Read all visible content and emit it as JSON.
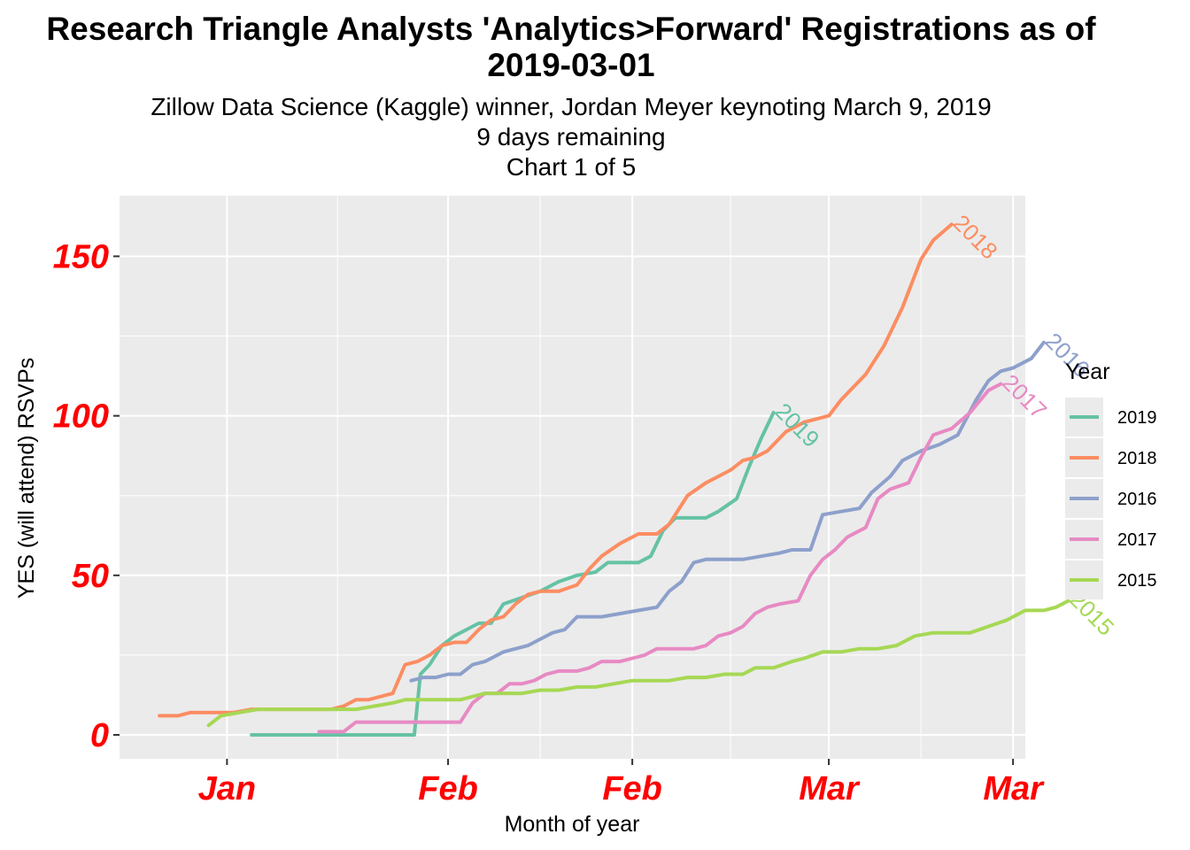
{
  "chart_data": {
    "type": "line",
    "title_line1": "Research Triangle Analysts 'Analytics>Forward' Registrations as of",
    "title_line2": "2019-03-01",
    "subtitle_lines": [
      "Zillow Data Science (Kaggle) winner, Jordan Meyer keynoting March 9, 2019",
      "9 days remaining",
      "Chart 1 of 5"
    ],
    "xlabel": "Month of year",
    "ylabel": "YES (will attend) RSVPs",
    "x_ticks": [
      {
        "x": 0,
        "label": "Jan"
      },
      {
        "x": 36,
        "label": "Feb"
      },
      {
        "x": 66,
        "label": "Feb"
      },
      {
        "x": 98,
        "label": "Mar"
      },
      {
        "x": 128,
        "label": "Mar"
      }
    ],
    "x_range": [
      -17.5,
      130
    ],
    "y_ticks": [
      0,
      50,
      100,
      150
    ],
    "ylim": [
      -7.5,
      169
    ],
    "grid": true,
    "legend": {
      "title": "Year",
      "position": "right"
    },
    "colors": {
      "2019": "#66c2a5",
      "2018": "#fc8d62",
      "2016": "#8da0cb",
      "2017": "#e78ac3",
      "2015": "#a6d854",
      "panel": "#ebebeb",
      "grid": "#ffffff",
      "tick_text": "#ff0000"
    },
    "series": [
      {
        "name": "2019",
        "label_at_end": true,
        "points": [
          [
            4,
            0
          ],
          [
            8,
            0
          ],
          [
            12,
            0
          ],
          [
            16,
            0
          ],
          [
            20,
            0
          ],
          [
            24,
            0
          ],
          [
            28,
            0
          ],
          [
            30.5,
            0
          ],
          [
            31.5,
            19
          ],
          [
            33,
            22
          ],
          [
            35,
            28
          ],
          [
            37,
            31
          ],
          [
            39,
            33
          ],
          [
            41,
            35
          ],
          [
            43,
            35
          ],
          [
            45,
            41
          ],
          [
            48,
            43
          ],
          [
            51,
            45
          ],
          [
            54,
            48
          ],
          [
            57,
            50
          ],
          [
            60,
            51
          ],
          [
            62,
            54
          ],
          [
            64,
            54
          ],
          [
            67,
            54
          ],
          [
            69,
            56
          ],
          [
            71,
            64
          ],
          [
            73,
            68
          ],
          [
            76,
            68
          ],
          [
            78,
            68
          ],
          [
            80,
            70
          ],
          [
            83,
            74
          ],
          [
            85,
            84
          ],
          [
            87,
            93
          ],
          [
            89,
            101
          ]
        ]
      },
      {
        "name": "2018",
        "label_at_end": true,
        "points": [
          [
            -11,
            6
          ],
          [
            -8,
            6
          ],
          [
            -6,
            7
          ],
          [
            -3,
            7
          ],
          [
            0,
            7
          ],
          [
            1,
            7
          ],
          [
            4,
            8
          ],
          [
            8,
            8
          ],
          [
            12,
            8
          ],
          [
            17,
            8
          ],
          [
            19,
            9
          ],
          [
            21,
            11
          ],
          [
            23,
            11
          ],
          [
            25,
            12
          ],
          [
            27,
            13
          ],
          [
            29,
            22
          ],
          [
            31,
            23
          ],
          [
            33,
            25
          ],
          [
            35,
            28
          ],
          [
            37,
            29
          ],
          [
            39,
            29
          ],
          [
            41,
            33
          ],
          [
            43,
            36
          ],
          [
            45,
            37
          ],
          [
            47,
            41
          ],
          [
            49,
            44
          ],
          [
            51,
            45
          ],
          [
            54,
            45
          ],
          [
            57,
            47
          ],
          [
            59,
            52
          ],
          [
            61,
            56
          ],
          [
            64,
            60
          ],
          [
            67,
            63
          ],
          [
            70,
            63
          ],
          [
            72,
            66
          ],
          [
            75,
            75
          ],
          [
            78,
            79
          ],
          [
            80,
            81
          ],
          [
            82,
            83
          ],
          [
            84,
            86
          ],
          [
            86,
            87
          ],
          [
            88,
            89
          ],
          [
            91,
            95
          ],
          [
            94,
            98
          ],
          [
            98,
            100
          ],
          [
            100,
            105
          ],
          [
            104,
            113
          ],
          [
            107,
            122
          ],
          [
            110,
            134
          ],
          [
            113,
            149
          ],
          [
            115,
            155
          ],
          [
            118,
            160
          ]
        ]
      },
      {
        "name": "2016",
        "label_at_end": true,
        "points": [
          [
            30,
            17
          ],
          [
            32,
            18
          ],
          [
            34,
            18
          ],
          [
            36,
            19
          ],
          [
            38,
            19
          ],
          [
            40,
            22
          ],
          [
            42,
            23
          ],
          [
            45,
            26
          ],
          [
            47,
            27
          ],
          [
            49,
            28
          ],
          [
            51,
            30
          ],
          [
            53,
            32
          ],
          [
            55,
            33
          ],
          [
            57,
            37
          ],
          [
            59,
            37
          ],
          [
            61,
            37
          ],
          [
            64,
            38
          ],
          [
            67,
            39
          ],
          [
            70,
            40
          ],
          [
            72,
            45
          ],
          [
            74,
            48
          ],
          [
            76,
            54
          ],
          [
            78,
            55
          ],
          [
            81,
            55
          ],
          [
            84,
            55
          ],
          [
            87,
            56
          ],
          [
            90,
            57
          ],
          [
            92,
            58
          ],
          [
            95,
            58
          ],
          [
            97,
            69
          ],
          [
            100,
            70
          ],
          [
            103,
            71
          ],
          [
            105,
            76
          ],
          [
            108,
            81
          ],
          [
            110,
            86
          ],
          [
            113,
            89
          ],
          [
            116,
            91
          ],
          [
            119,
            94
          ],
          [
            122,
            105
          ],
          [
            124,
            111
          ],
          [
            126,
            114
          ],
          [
            128,
            115
          ],
          [
            131,
            118
          ],
          [
            133,
            123
          ]
        ]
      },
      {
        "name": "2017",
        "label_at_end": true,
        "points": [
          [
            15,
            1
          ],
          [
            19,
            1
          ],
          [
            21,
            4
          ],
          [
            25,
            4
          ],
          [
            29,
            4
          ],
          [
            33,
            4
          ],
          [
            37,
            4
          ],
          [
            38,
            4
          ],
          [
            40,
            10
          ],
          [
            42,
            13
          ],
          [
            44,
            13
          ],
          [
            46,
            16
          ],
          [
            48,
            16
          ],
          [
            50,
            17
          ],
          [
            52,
            19
          ],
          [
            54,
            20
          ],
          [
            57,
            20
          ],
          [
            59,
            21
          ],
          [
            61,
            23
          ],
          [
            64,
            23
          ],
          [
            66,
            24
          ],
          [
            68,
            25
          ],
          [
            70,
            27
          ],
          [
            73,
            27
          ],
          [
            76,
            27
          ],
          [
            78,
            28
          ],
          [
            80,
            31
          ],
          [
            82,
            32
          ],
          [
            84,
            34
          ],
          [
            86,
            38
          ],
          [
            88,
            40
          ],
          [
            90,
            41
          ],
          [
            93,
            42
          ],
          [
            95,
            50
          ],
          [
            97,
            55
          ],
          [
            99,
            58
          ],
          [
            101,
            62
          ],
          [
            104,
            65
          ],
          [
            106,
            74
          ],
          [
            108,
            77
          ],
          [
            111,
            79
          ],
          [
            113,
            87
          ],
          [
            115,
            94
          ],
          [
            118,
            96
          ],
          [
            121,
            101
          ],
          [
            124,
            108
          ],
          [
            126,
            110
          ]
        ]
      },
      {
        "name": "2015",
        "label_at_end": true,
        "points": [
          [
            -3,
            3
          ],
          [
            -1,
            6
          ],
          [
            2,
            7
          ],
          [
            5,
            8
          ],
          [
            8,
            8
          ],
          [
            12,
            8
          ],
          [
            15,
            8
          ],
          [
            18,
            8
          ],
          [
            21,
            8
          ],
          [
            24,
            9
          ],
          [
            27,
            10
          ],
          [
            29,
            11
          ],
          [
            32,
            11
          ],
          [
            35,
            11
          ],
          [
            38,
            11
          ],
          [
            40,
            12
          ],
          [
            42,
            13
          ],
          [
            45,
            13
          ],
          [
            48,
            13
          ],
          [
            51,
            14
          ],
          [
            54,
            14
          ],
          [
            57,
            15
          ],
          [
            60,
            15
          ],
          [
            63,
            16
          ],
          [
            66,
            17
          ],
          [
            69,
            17
          ],
          [
            72,
            17
          ],
          [
            75,
            18
          ],
          [
            78,
            18
          ],
          [
            81,
            19
          ],
          [
            84,
            19
          ],
          [
            86,
            21
          ],
          [
            89,
            21
          ],
          [
            92,
            23
          ],
          [
            94,
            24
          ],
          [
            97,
            26
          ],
          [
            100,
            26
          ],
          [
            103,
            27
          ],
          [
            106,
            27
          ],
          [
            109,
            28
          ],
          [
            112,
            31
          ],
          [
            115,
            32
          ],
          [
            118,
            32
          ],
          [
            121,
            32
          ],
          [
            124,
            34
          ],
          [
            127,
            36
          ],
          [
            130,
            39
          ],
          [
            133,
            39
          ],
          [
            135,
            40
          ],
          [
            137,
            42
          ]
        ]
      }
    ]
  }
}
